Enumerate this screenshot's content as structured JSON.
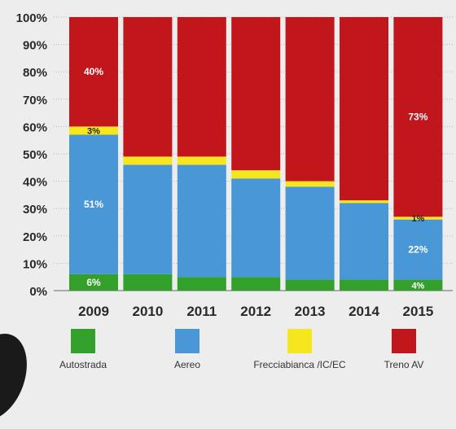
{
  "chart_data": {
    "type": "bar",
    "stacked": true,
    "categories": [
      "2009",
      "2010",
      "2011",
      "2012",
      "2013",
      "2014",
      "2015"
    ],
    "series": [
      {
        "name": "Autostrada",
        "color": "#33a02c",
        "values": [
          6,
          6,
          5,
          5,
          4,
          4,
          4
        ]
      },
      {
        "name": "Aereo",
        "color": "#4a97d8",
        "values": [
          51,
          40,
          41,
          36,
          34,
          28,
          22
        ]
      },
      {
        "name": "Frecciabianca /IC/EC",
        "color": "#f5e61e",
        "values": [
          3,
          3,
          3,
          3,
          2,
          1,
          1
        ]
      },
      {
        "name": "Treno AV",
        "color": "#c0161c",
        "values": [
          40,
          51,
          51,
          56,
          60,
          67,
          73
        ]
      }
    ],
    "ylim": [
      0,
      100
    ],
    "yticks": [
      "0%",
      "10%",
      "20%",
      "30%",
      "40%",
      "50%",
      "60%",
      "70%",
      "80%",
      "90%",
      "100%"
    ],
    "data_labels": [
      {
        "text": "6%",
        "category": "2009",
        "series": "Autostrada"
      },
      {
        "text": "51%",
        "category": "2009",
        "series": "Aereo"
      },
      {
        "text": "3%",
        "category": "2009",
        "series": "Frecciabianca /IC/EC"
      },
      {
        "text": "40%",
        "category": "2009",
        "series": "Treno AV"
      },
      {
        "text": "4%",
        "category": "2015",
        "series": "Autostrada"
      },
      {
        "text": "22%",
        "category": "2015",
        "series": "Aereo"
      },
      {
        "text": "1%",
        "category": "2015",
        "series": "Frecciabianca /IC/EC"
      },
      {
        "text": "73%",
        "category": "2015",
        "series": "Treno AV"
      }
    ],
    "grid": true,
    "legend_position": "bottom"
  }
}
